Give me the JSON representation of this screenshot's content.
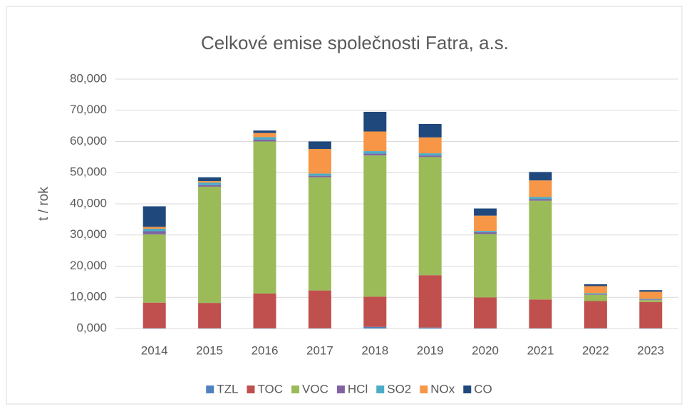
{
  "chart_data": {
    "type": "stacked_bar",
    "title": "Celkové emise společnosti Fatra, a.s.",
    "y_label": "t / rok",
    "categories": [
      "2014",
      "2015",
      "2016",
      "2017",
      "2018",
      "2019",
      "2020",
      "2021",
      "2022",
      "2023"
    ],
    "series": [
      {
        "name": "TZL",
        "color": "#4f81bd",
        "values": [
          0.1,
          0.1,
          0.1,
          0.1,
          0.5,
          0.3,
          0.1,
          0.1,
          0.1,
          0.1
        ]
      },
      {
        "name": "TOC",
        "color": "#c0504d",
        "values": [
          8.2,
          8.1,
          11.1,
          12.1,
          9.7,
          16.8,
          9.9,
          9.2,
          8.7,
          8.4
        ]
      },
      {
        "name": "VOC",
        "color": "#9bbb59",
        "values": [
          21.9,
          37.3,
          48.8,
          36.3,
          45.3,
          37.9,
          20.3,
          31.7,
          2.0,
          0.6
        ]
      },
      {
        "name": "HCl",
        "color": "#8064a2",
        "values": [
          1.0,
          0.5,
          0.6,
          0.5,
          0.6,
          0.5,
          0.6,
          0.5,
          0.2,
          0.2
        ]
      },
      {
        "name": "SO2",
        "color": "#4bacc6",
        "values": [
          0.8,
          0.8,
          0.8,
          0.7,
          0.8,
          0.7,
          0.4,
          0.7,
          0.3,
          0.2
        ]
      },
      {
        "name": "NOx",
        "color": "#f79646",
        "values": [
          0.6,
          0.5,
          1.3,
          7.9,
          6.3,
          5.1,
          4.9,
          5.3,
          2.3,
          2.3
        ]
      },
      {
        "name": "CO",
        "color": "#1f497d",
        "values": [
          6.6,
          1.2,
          0.8,
          2.4,
          6.3,
          4.3,
          2.3,
          2.7,
          0.6,
          0.5
        ]
      }
    ],
    "ylim": [
      0,
      80
    ],
    "yticks": [
      {
        "value": 0,
        "label": "0,000"
      },
      {
        "value": 10,
        "label": "10,000"
      },
      {
        "value": 20,
        "label": "20,000"
      },
      {
        "value": 30,
        "label": "30,000"
      },
      {
        "value": 40,
        "label": "40,000"
      },
      {
        "value": 50,
        "label": "50,000"
      },
      {
        "value": 60,
        "label": "60,000"
      },
      {
        "value": 70,
        "label": "70,000"
      },
      {
        "value": 80,
        "label": "80,000"
      }
    ],
    "grid": true,
    "legend": "bottom"
  }
}
